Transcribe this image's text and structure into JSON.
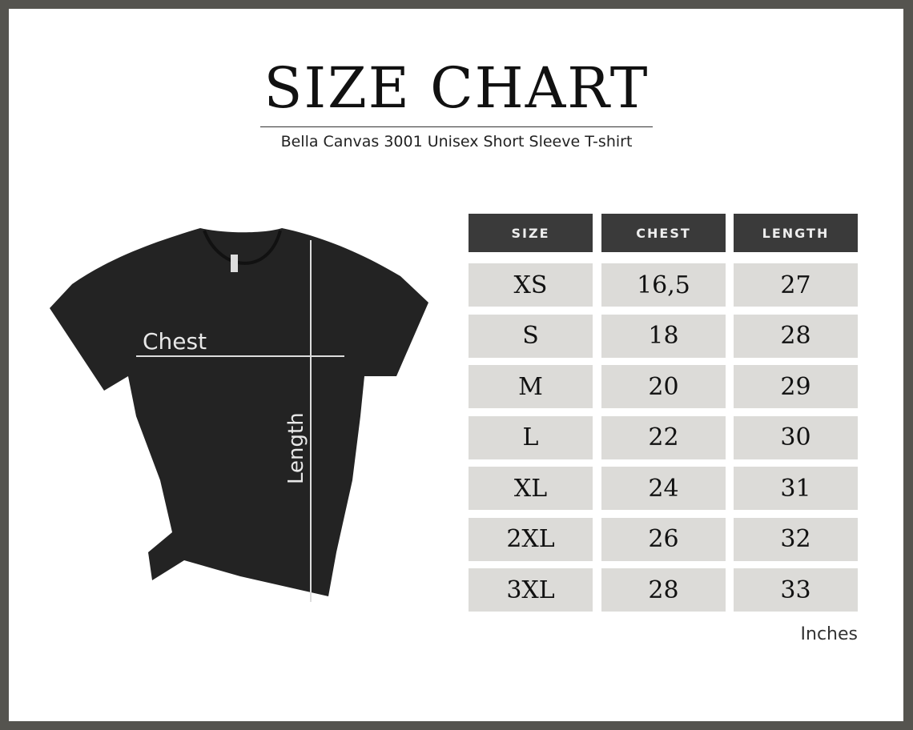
{
  "title": "SIZE CHART",
  "subtitle": "Bella Canvas 3001 Unisex Short Sleeve T-shirt",
  "diagram": {
    "chest_label": "Chest",
    "length_label": "Length",
    "shirt_color": "#222222"
  },
  "table": {
    "headers": [
      "SIZE",
      "CHEST",
      "LENGTH"
    ],
    "rows": [
      [
        "XS",
        "16,5",
        "27"
      ],
      [
        "S",
        "18",
        "28"
      ],
      [
        "M",
        "20",
        "29"
      ],
      [
        "L",
        "22",
        "30"
      ],
      [
        "XL",
        "24",
        "31"
      ],
      [
        "2XL",
        "26",
        "32"
      ],
      [
        "3XL",
        "28",
        "33"
      ]
    ],
    "units": "Inches"
  },
  "colors": {
    "frame": "#55544f",
    "header_bg": "#3a3a3a",
    "cell_bg": "#dcdbd8"
  }
}
